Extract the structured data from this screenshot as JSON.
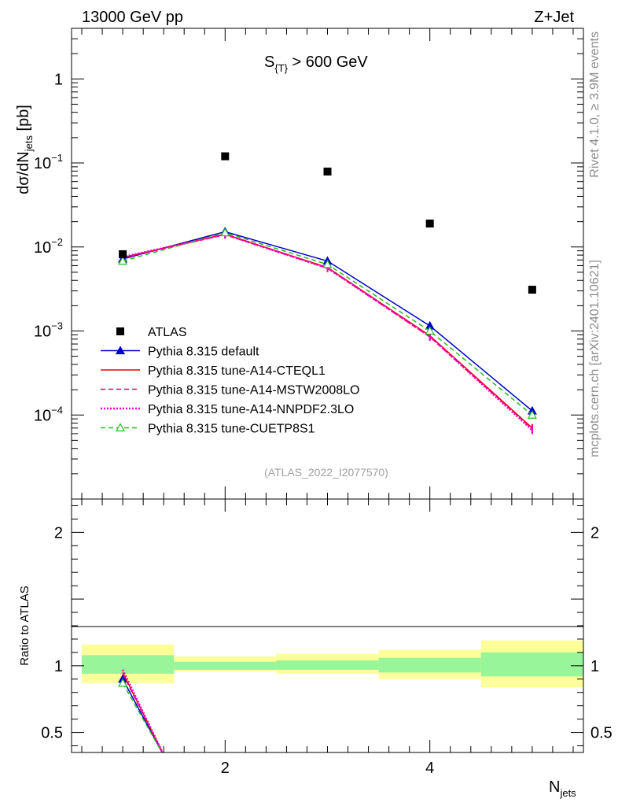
{
  "header": {
    "left": "13000 GeV pp",
    "right": "Z+Jet"
  },
  "side_labels": {
    "rivet": "Rivet 4.1.0, ≥ 3.9M events",
    "mcplots": "mcplots.cern.ch [arXiv:2401.10621]"
  },
  "chart_data": [
    {
      "type": "scatter",
      "panel": "main",
      "title_main": "S",
      "title_sub": "{T}",
      "title_rest": " > 600 GeV",
      "watermark": "(ATLAS_2022_I2077570)",
      "ylabel_prefix": "dσ/dN",
      "ylabel_sub": "jets",
      "ylabel_suffix": " [pb]",
      "yscale": "log",
      "ylim": [
        1e-05,
        4
      ],
      "xlim": [
        0.5,
        5.5
      ],
      "ytick_labels": [
        {
          "value": 1,
          "mant": "1",
          "exp": ""
        },
        {
          "value": 0.1,
          "mant": "10",
          "exp": "−1"
        },
        {
          "value": 0.01,
          "mant": "10",
          "exp": "−2"
        },
        {
          "value": 0.001,
          "mant": "10",
          "exp": "−3"
        },
        {
          "value": 0.0001,
          "mant": "10",
          "exp": "−4"
        }
      ],
      "x": [
        1,
        2,
        3,
        4,
        5
      ],
      "series": [
        {
          "name": "ATLAS",
          "style": "data",
          "color": "#000000",
          "values": [
            0.0082,
            0.12,
            0.079,
            0.019,
            0.0031
          ]
        },
        {
          "name": "Pythia 8.315 default",
          "style": "solid-triangle",
          "color": "#0000cc",
          "values": [
            0.0072,
            0.0152,
            0.0068,
            0.00115,
            0.000112
          ]
        },
        {
          "name": "Pythia 8.315 tune-A14-CTEQL1",
          "style": "solid",
          "color": "#ee0000",
          "values": [
            0.0075,
            0.0142,
            0.0057,
            0.00088,
            7e-05
          ]
        },
        {
          "name": "Pythia 8.315 tune-A14-MSTW2008LO",
          "style": "dashed",
          "color": "#ee0066",
          "values": [
            0.0074,
            0.014,
            0.0056,
            0.00085,
            6.8e-05
          ]
        },
        {
          "name": "Pythia 8.315 tune-A14-NNPDF2.3LO",
          "style": "dotted",
          "color": "#ee00cc",
          "values": [
            0.0076,
            0.0141,
            0.0056,
            0.00086,
            6.6e-05
          ]
        },
        {
          "name": "Pythia 8.315 tune-CUETP8S1",
          "style": "dashed-triangle",
          "color": "#22bb22",
          "values": [
            0.0068,
            0.0148,
            0.0062,
            0.001,
            0.0001
          ]
        }
      ]
    },
    {
      "type": "line",
      "panel": "ratio",
      "ylabel": "Ratio to ATLAS",
      "ylim": [
        0.35,
        2.25
      ],
      "xlim": [
        0.5,
        5.5
      ],
      "xlabel_main": "N",
      "xlabel_sub": "jets",
      "xtick_labels": [
        "2",
        "4"
      ],
      "xtick_values": [
        2,
        4
      ],
      "ytick_labels": [
        "0.5",
        "1",
        "2"
      ],
      "ytick_values": [
        0.5,
        1,
        2
      ],
      "bands": [
        {
          "x_low": 0.6,
          "x_high": 1.5,
          "inner": [
            0.94,
            1.08
          ],
          "outer": [
            0.87,
            1.16
          ]
        },
        {
          "x_low": 1.5,
          "x_high": 2.5,
          "inner": [
            0.97,
            1.03
          ],
          "outer": [
            0.96,
            1.07
          ]
        },
        {
          "x_low": 2.5,
          "x_high": 3.5,
          "inner": [
            0.97,
            1.04
          ],
          "outer": [
            0.94,
            1.09
          ]
        },
        {
          "x_low": 3.5,
          "x_high": 4.5,
          "inner": [
            0.95,
            1.06
          ],
          "outer": [
            0.9,
            1.12
          ]
        },
        {
          "x_low": 4.5,
          "x_high": 5.5,
          "inner": [
            0.92,
            1.1
          ],
          "outer": [
            0.84,
            1.19
          ]
        }
      ],
      "band_colors": {
        "inner": "#99f599",
        "outer": "#ffff99"
      },
      "ratio_lines": [
        {
          "name": "Pythia 8.315 default",
          "color": "#0000cc",
          "style": "solid-triangle",
          "x": [
            1,
            1.42
          ],
          "values": [
            0.9,
            0.3
          ]
        },
        {
          "name": "Pythia 8.315 tune-A14-CTEQL1",
          "color": "#ee0000",
          "style": "solid",
          "x": [
            1,
            1.42
          ],
          "values": [
            0.95,
            0.3
          ]
        },
        {
          "name": "Pythia 8.315 tune-A14-MSTW2008LO",
          "color": "#ee0066",
          "style": "dashed",
          "x": [
            1,
            1.42
          ],
          "values": [
            0.94,
            0.3
          ]
        },
        {
          "name": "Pythia 8.315 tune-A14-NNPDF2.3LO",
          "color": "#ee00cc",
          "style": "dotted",
          "x": [
            1,
            1.42
          ],
          "values": [
            0.97,
            0.3
          ]
        },
        {
          "name": "Pythia 8.315 tune-CUETP8S1",
          "color": "#22bb22",
          "style": "dashed-triangle",
          "x": [
            1,
            1.42
          ],
          "values": [
            0.87,
            0.3
          ]
        }
      ]
    }
  ]
}
